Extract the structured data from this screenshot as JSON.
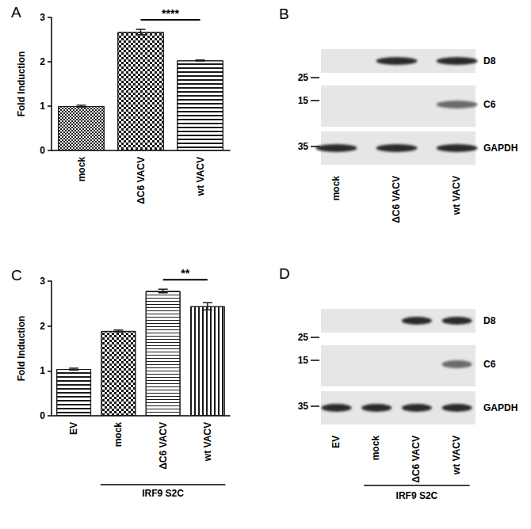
{
  "chart_data": [
    {
      "type": "bar",
      "panel": "A",
      "categories": [
        "mock",
        "ΔC6 VACV",
        "wt VACV"
      ],
      "values": [
        1.0,
        2.67,
        2.03
      ],
      "errors": [
        0.02,
        0.06,
        0.01
      ],
      "y_label": "Fold Induction",
      "ylim": [
        0,
        3
      ],
      "yticks": [
        0,
        1,
        2,
        3
      ],
      "grid": false,
      "color": "#1a1a1a",
      "annotations": [
        {
          "text": "****",
          "from": "ΔC6 VACV",
          "to": "wt VACV"
        }
      ]
    },
    {
      "type": "bar",
      "panel": "C",
      "categories": [
        "EV",
        "mock",
        "ΔC6 VACV",
        "wt VACV"
      ],
      "values": [
        1.04,
        1.89,
        2.78,
        2.44
      ],
      "errors": [
        0.02,
        0.02,
        0.04,
        0.08
      ],
      "y_label": "Fold Induction",
      "ylim": [
        0,
        3
      ],
      "yticks": [
        0,
        1,
        2,
        3
      ],
      "grid": false,
      "color": "#1a1a1a",
      "annotations": [
        {
          "text": "**",
          "from": "ΔC6 VACV",
          "to": "wt VACV"
        }
      ],
      "groups": [
        {
          "label": "IRF9 S2C",
          "from": "mock",
          "to": "wt VACV"
        }
      ]
    }
  ],
  "blots": [
    {
      "panel": "B",
      "lanes": [
        "mock",
        "ΔC6 VACV",
        "wt VACV"
      ],
      "rows": [
        {
          "label": "D8",
          "marker": 25,
          "bands": [
            false,
            true,
            true
          ]
        },
        {
          "label": "C6",
          "marker": 15,
          "bands": [
            false,
            false,
            true
          ]
        },
        {
          "label": "GAPDH",
          "marker": 35,
          "bands": [
            true,
            true,
            true
          ]
        }
      ]
    },
    {
      "panel": "D",
      "lanes": [
        "EV",
        "mock",
        "ΔC6 VACV",
        "wt VACV"
      ],
      "rows": [
        {
          "label": "D8",
          "marker": 25,
          "bands": [
            false,
            false,
            true,
            true
          ]
        },
        {
          "label": "C6",
          "marker": 15,
          "bands": [
            false,
            false,
            false,
            true
          ]
        },
        {
          "label": "GAPDH",
          "marker": 35,
          "bands": [
            true,
            true,
            true,
            true
          ]
        }
      ],
      "groups": [
        {
          "label": "IRF9 S2C",
          "from": "mock",
          "to": "wt VACV"
        }
      ]
    }
  ]
}
